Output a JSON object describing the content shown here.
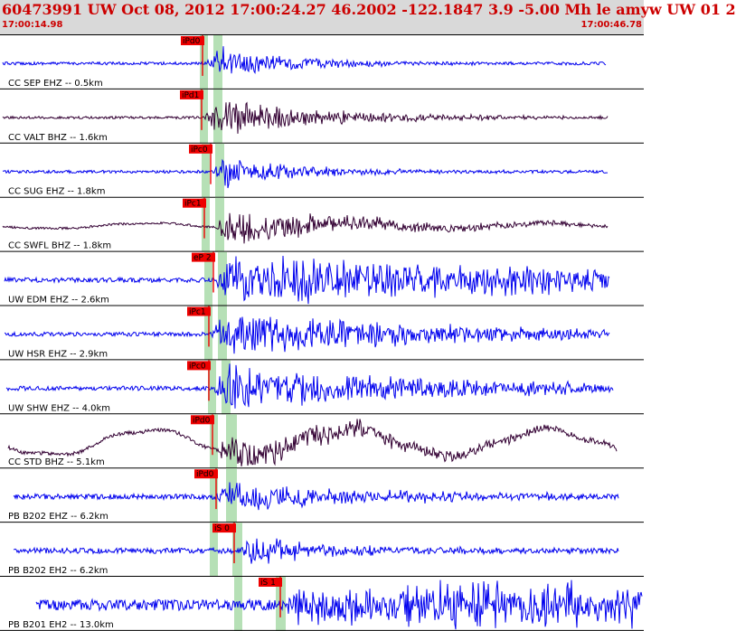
{
  "header": {
    "title": "60473991 UW Oct 08, 2012 17:00:24.27   46.2002 -122.1847  3.9 -5.00 Mh le amyw UW 01   2",
    "start_time": "17:00:14.98",
    "end_time": "17:00:46.78"
  },
  "colors": {
    "header_bg": "#d9d9d9",
    "header_text": "#cc0000",
    "trace_ehz": "#0000ee",
    "trace_bhz": "#330033",
    "pick_marker": "#ee0000",
    "pick_band": "#b6e0b6"
  },
  "traces": [
    {
      "label": "CC SEP EHZ -- 0.5km",
      "pick": "iPd0",
      "channel_type": "EHZ"
    },
    {
      "label": "CC VALT BHZ -- 1.6km",
      "pick": "iPd1",
      "channel_type": "BHZ"
    },
    {
      "label": "CC SUG EHZ -- 1.8km",
      "pick": "iPc0",
      "channel_type": "EHZ"
    },
    {
      "label": "CC SWFL BHZ -- 1.8km",
      "pick": "iPc1",
      "channel_type": "BHZ"
    },
    {
      "label": "UW EDM EHZ -- 2.6km",
      "pick": "eP 2",
      "channel_type": "EHZ"
    },
    {
      "label": "UW HSR EHZ -- 2.9km",
      "pick": "iPc1",
      "channel_type": "EHZ"
    },
    {
      "label": "UW SHW EHZ -- 4.0km",
      "pick": "iPc0",
      "channel_type": "EHZ"
    },
    {
      "label": "CC STD BHZ -- 5.1km",
      "pick": "iPd0",
      "channel_type": "BHZ"
    },
    {
      "label": "PB B202 EHZ -- 6.2km",
      "pick": "iPd0",
      "channel_type": "EHZ"
    },
    {
      "label": "PB B202 EH2 -- 6.2km",
      "pick": "iS 0",
      "channel_type": "EH2"
    },
    {
      "label": "PB B201 EH2 -- 13.0km",
      "pick": "iS 1",
      "channel_type": "EH2"
    }
  ]
}
